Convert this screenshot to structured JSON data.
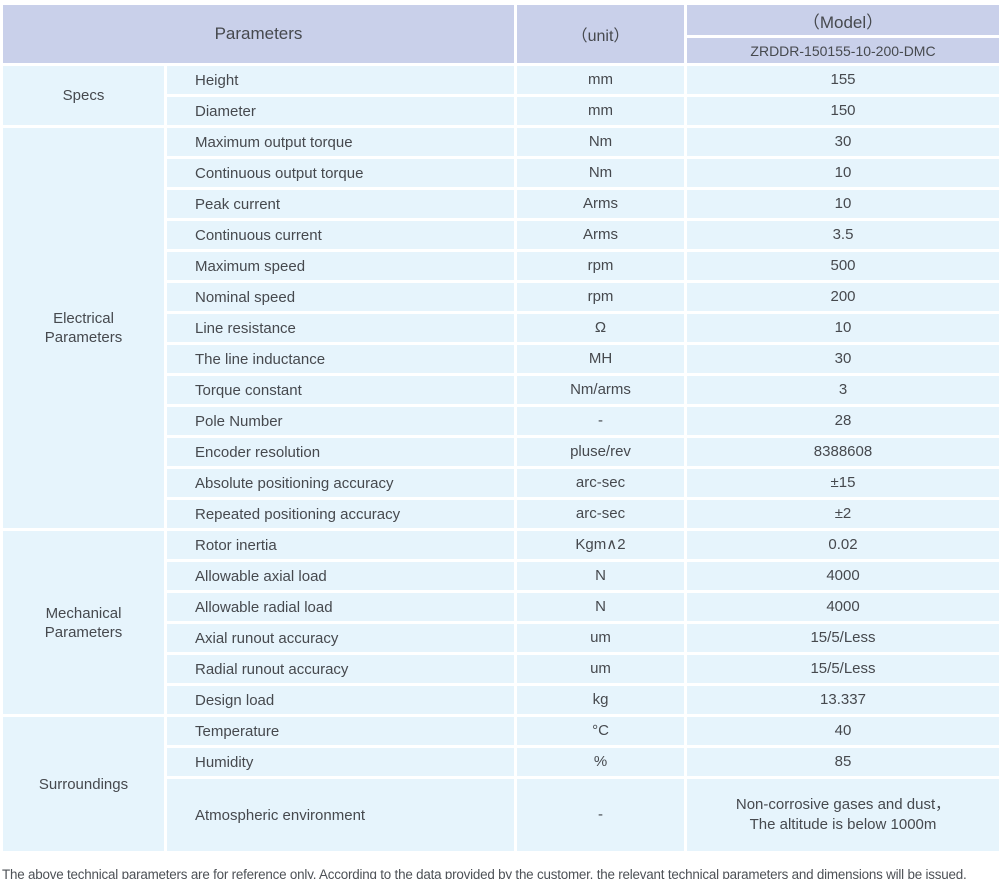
{
  "table": {
    "header": {
      "parameters_label": "Parameters",
      "unit_label": "（unit）",
      "model_label": "（Model）",
      "model_value": "ZRDDR-150155-10-200-DMC"
    },
    "sections": [
      {
        "category": "Specs",
        "rows": [
          {
            "name": "Height",
            "unit": "mm",
            "value": "155"
          },
          {
            "name": "Diameter",
            "unit": "mm",
            "value": "150"
          }
        ]
      },
      {
        "category": "Electrical\nParameters",
        "rows": [
          {
            "name": "Maximum output torque",
            "unit": "Nm",
            "value": "30"
          },
          {
            "name": "Continuous output torque",
            "unit": "Nm",
            "value": "10"
          },
          {
            "name": "Peak current",
            "unit": "Arms",
            "value": "10"
          },
          {
            "name": "Continuous current",
            "unit": "Arms",
            "value": "3.5"
          },
          {
            "name": "Maximum speed",
            "unit": "rpm",
            "value": "500"
          },
          {
            "name": "Nominal speed",
            "unit": "rpm",
            "value": "200"
          },
          {
            "name": "Line resistance",
            "unit": "Ω",
            "value": "10"
          },
          {
            "name": "The line inductance",
            "unit": "MH",
            "value": "30"
          },
          {
            "name": "Torque constant",
            "unit": "Nm/arms",
            "value": "3"
          },
          {
            "name": "Pole Number",
            "unit": "-",
            "value": "28"
          },
          {
            "name": "Encoder resolution",
            "unit": "pluse/rev",
            "value": "8388608"
          },
          {
            "name": "Absolute positioning accuracy",
            "unit": "arc-sec",
            "value": "±15"
          },
          {
            "name": "Repeated positioning accuracy",
            "unit": "arc-sec",
            "value": "±2"
          }
        ]
      },
      {
        "category": "Mechanical\nParameters",
        "rows": [
          {
            "name": "Rotor inertia",
            "unit": "Kgm∧2",
            "value": "0.02"
          },
          {
            "name": "Allowable axial load",
            "unit": "N",
            "value": "4000"
          },
          {
            "name": "Allowable radial load",
            "unit": "N",
            "value": "4000"
          },
          {
            "name": "Axial runout accuracy",
            "unit": "um",
            "value": "15/5/Less"
          },
          {
            "name": "Radial runout accuracy",
            "unit": "um",
            "value": "15/5/Less"
          },
          {
            "name": "Design load",
            "unit": "kg",
            "value": "13.337"
          }
        ]
      },
      {
        "category": "Surroundings",
        "rows": [
          {
            "name": "Temperature",
            "unit": "°C",
            "value": "40"
          },
          {
            "name": "Humidity",
            "unit": "%",
            "value": "85"
          },
          {
            "name": "Atmospheric environment",
            "unit": "-",
            "value": "Non-corrosive gases and dust，\nThe altitude is below 1000m",
            "tall": true
          }
        ]
      }
    ]
  },
  "footer": {
    "note": "The above technical parameters are for reference only. According to the data provided by the customer, the relevant technical parameters and dimensions will be issued."
  },
  "colors": {
    "header_bg": "#c9d0ea",
    "cell_bg": "#e6f4fc",
    "text": "#46494e"
  }
}
